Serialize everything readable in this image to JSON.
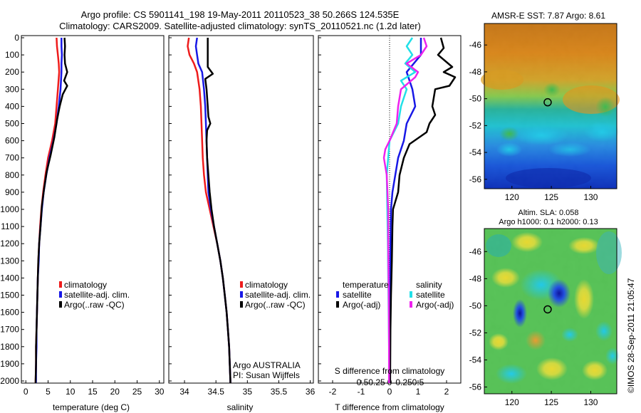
{
  "header": {
    "title_line1": "Argo profile: CS 5901141_198 19-May-2011 20110523_38 50.266S 124.535E",
    "title_line2": "Climatology: CARS2009. Satellite-adjusted climatology: synTS_20110521.nc (1.2d later)"
  },
  "colors": {
    "climatology": "#ee1c1c",
    "satellite": "#1818e6",
    "argo": "#000000",
    "s_satellite": "#22e0e8",
    "s_argo": "#ee22ee"
  },
  "chart_data": [
    {
      "id": "temperature",
      "type": "line",
      "xlabel": "temperature (deg C)",
      "xlim": [
        -1,
        31
      ],
      "xticks": [
        0,
        5,
        10,
        15,
        20,
        25,
        30
      ],
      "ylim": [
        2060,
        0
      ],
      "yticks": [
        0,
        100,
        200,
        300,
        400,
        500,
        600,
        700,
        800,
        900,
        1000,
        1100,
        1200,
        1300,
        1400,
        1500,
        1600,
        1700,
        1800,
        1900,
        2000
      ],
      "legend": [
        "climatology",
        "satellite-adj. clim.",
        "Argo(..raw -QC)"
      ],
      "series": [
        {
          "name": "climatology",
          "color_key": "climatology",
          "points": [
            [
              6.9,
              0
            ],
            [
              7.0,
              50
            ],
            [
              7.2,
              100
            ],
            [
              7.4,
              150
            ],
            [
              7.5,
              200
            ],
            [
              7.2,
              300
            ],
            [
              6.9,
              400
            ],
            [
              6.6,
              500
            ],
            [
              5.9,
              600
            ],
            [
              5.0,
              700
            ],
            [
              4.4,
              800
            ],
            [
              3.9,
              900
            ],
            [
              3.5,
              1000
            ],
            [
              3.2,
              1100
            ],
            [
              3.0,
              1200
            ],
            [
              2.8,
              1300
            ],
            [
              2.7,
              1400
            ],
            [
              2.6,
              1500
            ],
            [
              2.5,
              1600
            ],
            [
              2.4,
              1700
            ],
            [
              2.3,
              1800
            ],
            [
              2.3,
              1900
            ],
            [
              2.2,
              2000
            ],
            [
              2.2,
              2060
            ]
          ]
        },
        {
          "name": "satellite-adj. clim.",
          "color_key": "satellite",
          "points": [
            [
              8.0,
              0
            ],
            [
              8.0,
              50
            ],
            [
              8.1,
              100
            ],
            [
              8.0,
              150
            ],
            [
              8.0,
              200
            ],
            [
              7.8,
              300
            ],
            [
              7.4,
              400
            ],
            [
              6.9,
              500
            ],
            [
              6.2,
              600
            ],
            [
              5.3,
              700
            ],
            [
              4.6,
              800
            ],
            [
              4.0,
              900
            ],
            [
              3.6,
              1000
            ],
            [
              3.3,
              1100
            ],
            [
              3.0,
              1200
            ],
            [
              2.9,
              1300
            ],
            [
              2.7,
              1400
            ],
            [
              2.6,
              1500
            ],
            [
              2.5,
              1600
            ],
            [
              2.4,
              1700
            ],
            [
              2.4,
              1800
            ],
            [
              2.3,
              1900
            ],
            [
              2.3,
              2000
            ],
            [
              2.2,
              2060
            ]
          ]
        },
        {
          "name": "Argo(..raw -QC)",
          "color_key": "argo",
          "points": [
            [
              8.7,
              0
            ],
            [
              8.8,
              50
            ],
            [
              8.7,
              100
            ],
            [
              8.8,
              150
            ],
            [
              9.3,
              200
            ],
            [
              8.6,
              250
            ],
            [
              9.3,
              280
            ],
            [
              8.3,
              330
            ],
            [
              7.6,
              400
            ],
            [
              7.0,
              480
            ],
            [
              6.4,
              580
            ],
            [
              5.6,
              680
            ],
            [
              4.7,
              780
            ],
            [
              4.1,
              880
            ],
            [
              3.6,
              980
            ],
            [
              3.3,
              1100
            ],
            [
              3.0,
              1200
            ],
            [
              2.8,
              1300
            ],
            [
              2.7,
              1400
            ],
            [
              2.6,
              1500
            ],
            [
              2.5,
              1600
            ],
            [
              2.4,
              1700
            ],
            [
              2.3,
              1800
            ],
            [
              2.3,
              1900
            ],
            [
              2.2,
              2000
            ],
            [
              2.2,
              2050
            ]
          ]
        }
      ]
    },
    {
      "id": "salinity",
      "type": "line",
      "xlabel": "salinity",
      "xlim": [
        33.75,
        36.05
      ],
      "xticks": [
        34,
        34.5,
        35,
        35.5,
        36
      ],
      "ylim": [
        2060,
        0
      ],
      "legend": [
        "climatology",
        "satellite-adj. clim.",
        "Argo(..raw -QC)"
      ],
      "annotations": [
        "Argo AUSTRALIA",
        "PI: Susan Wijffels"
      ],
      "series": [
        {
          "name": "climatology",
          "color_key": "climatology",
          "points": [
            [
              34.07,
              0
            ],
            [
              34.05,
              50
            ],
            [
              34.08,
              100
            ],
            [
              34.15,
              150
            ],
            [
              34.2,
              200
            ],
            [
              34.24,
              300
            ],
            [
              34.26,
              400
            ],
            [
              34.27,
              500
            ],
            [
              34.28,
              600
            ],
            [
              34.29,
              700
            ],
            [
              34.31,
              800
            ],
            [
              34.34,
              900
            ],
            [
              34.4,
              1000
            ],
            [
              34.46,
              1100
            ],
            [
              34.52,
              1200
            ],
            [
              34.57,
              1300
            ],
            [
              34.61,
              1400
            ],
            [
              34.64,
              1500
            ],
            [
              34.67,
              1600
            ],
            [
              34.69,
              1700
            ],
            [
              34.71,
              1800
            ],
            [
              34.72,
              1900
            ],
            [
              34.73,
              2000
            ],
            [
              34.73,
              2060
            ]
          ]
        },
        {
          "name": "satellite-adj. clim.",
          "color_key": "satellite",
          "points": [
            [
              34.2,
              0
            ],
            [
              34.18,
              50
            ],
            [
              34.2,
              100
            ],
            [
              34.22,
              150
            ],
            [
              34.28,
              200
            ],
            [
              34.31,
              300
            ],
            [
              34.33,
              400
            ],
            [
              34.34,
              500
            ],
            [
              34.35,
              600
            ],
            [
              34.36,
              700
            ],
            [
              34.37,
              800
            ],
            [
              34.38,
              900
            ],
            [
              34.42,
              1000
            ],
            [
              34.47,
              1100
            ],
            [
              34.52,
              1200
            ],
            [
              34.57,
              1300
            ],
            [
              34.61,
              1400
            ],
            [
              34.64,
              1500
            ],
            [
              34.67,
              1600
            ],
            [
              34.69,
              1700
            ],
            [
              34.71,
              1800
            ],
            [
              34.72,
              1900
            ],
            [
              34.73,
              2000
            ],
            [
              34.73,
              2060
            ]
          ]
        },
        {
          "name": "Argo(..raw -QC)",
          "color_key": "argo",
          "points": [
            [
              34.37,
              0
            ],
            [
              34.37,
              100
            ],
            [
              34.37,
              170
            ],
            [
              34.45,
              210
            ],
            [
              34.33,
              240
            ],
            [
              34.35,
              300
            ],
            [
              34.37,
              400
            ],
            [
              34.38,
              460
            ],
            [
              34.41,
              500
            ],
            [
              34.36,
              540
            ],
            [
              34.35,
              600
            ],
            [
              34.36,
              700
            ],
            [
              34.38,
              800
            ],
            [
              34.4,
              900
            ],
            [
              34.43,
              1000
            ],
            [
              34.47,
              1100
            ],
            [
              34.52,
              1200
            ],
            [
              34.57,
              1300
            ],
            [
              34.61,
              1400
            ],
            [
              34.64,
              1500
            ],
            [
              34.67,
              1600
            ],
            [
              34.69,
              1700
            ],
            [
              34.71,
              1800
            ],
            [
              34.72,
              1900
            ],
            [
              34.73,
              2000
            ],
            [
              34.73,
              2050
            ]
          ]
        }
      ]
    },
    {
      "id": "difference",
      "type": "line",
      "xlabel": "T difference from climatology",
      "top_label": "S difference from climatology",
      "xlim": [
        -2.5,
        2.5
      ],
      "xticks_T": [
        -2,
        -1,
        0,
        1,
        2
      ],
      "xticks_S": [
        "-0.5",
        "-0.25",
        "0",
        "0.25",
        "0.5"
      ],
      "xticks_S_pos": [
        -1,
        -0.5,
        0,
        0.5,
        1
      ],
      "ylim": [
        2060,
        0
      ],
      "legend": {
        "temperature_header": "temperature",
        "salinity_header": "salinity",
        "temperature": [
          "satellite",
          "Argo(-adj)"
        ],
        "salinity": [
          "satellite",
          "Argo(-adj)"
        ]
      },
      "series": [
        {
          "name": "T satellite",
          "color_key": "satellite",
          "points": [
            [
              1.1,
              0
            ],
            [
              1.1,
              100
            ],
            [
              0.6,
              200
            ],
            [
              0.8,
              300
            ],
            [
              0.9,
              400
            ],
            [
              0.6,
              500
            ],
            [
              0.5,
              600
            ],
            [
              0.3,
              700
            ],
            [
              0.2,
              800
            ],
            [
              0.1,
              900
            ],
            [
              0.05,
              1000
            ],
            [
              0.03,
              1200
            ],
            [
              0.02,
              1500
            ],
            [
              0.01,
              2000
            ],
            [
              0.0,
              2060
            ]
          ]
        },
        {
          "name": "T Argo(-adj)",
          "color_key": "argo",
          "points": [
            [
              1.8,
              0
            ],
            [
              1.9,
              60
            ],
            [
              1.7,
              100
            ],
            [
              2.2,
              170
            ],
            [
              1.9,
              200
            ],
            [
              2.3,
              230
            ],
            [
              2.1,
              280
            ],
            [
              1.6,
              300
            ],
            [
              1.5,
              400
            ],
            [
              1.6,
              450
            ],
            [
              1.4,
              500
            ],
            [
              1.3,
              550
            ],
            [
              0.7,
              620
            ],
            [
              0.5,
              700
            ],
            [
              0.35,
              800
            ],
            [
              0.3,
              900
            ],
            [
              0.12,
              1000
            ],
            [
              0.1,
              1100
            ],
            [
              0.08,
              1300
            ],
            [
              0.05,
              1500
            ],
            [
              0.03,
              1700
            ],
            [
              0.02,
              2000
            ],
            [
              0.02,
              2050
            ]
          ]
        },
        {
          "name": "S satellite",
          "color_key": "s_satellite",
          "points": [
            [
              0.8,
              0
            ],
            [
              0.6,
              50
            ],
            [
              0.8,
              100
            ],
            [
              0.55,
              150
            ],
            [
              0.9,
              200
            ],
            [
              0.4,
              250
            ],
            [
              0.6,
              300
            ],
            [
              0.4,
              400
            ],
            [
              0.3,
              500
            ],
            [
              0.0,
              600
            ],
            [
              -0.05,
              700
            ],
            [
              -0.1,
              800
            ],
            [
              -0.08,
              1000
            ],
            [
              -0.06,
              1200
            ],
            [
              -0.04,
              1500
            ],
            [
              -0.02,
              1800
            ],
            [
              -0.02,
              2060
            ]
          ]
        },
        {
          "name": "S Argo(-adj)",
          "color_key": "s_argo",
          "points": [
            [
              1.2,
              0
            ],
            [
              1.3,
              50
            ],
            [
              1.1,
              100
            ],
            [
              0.6,
              150
            ],
            [
              1.0,
              200
            ],
            [
              0.9,
              230
            ],
            [
              0.4,
              300
            ],
            [
              0.3,
              400
            ],
            [
              0.25,
              500
            ],
            [
              0.0,
              600
            ],
            [
              -0.15,
              650
            ],
            [
              -0.2,
              700
            ],
            [
              -0.1,
              800
            ],
            [
              -0.05,
              1000
            ],
            [
              -0.05,
              1200
            ],
            [
              -0.03,
              1500
            ],
            [
              -0.02,
              1800
            ],
            [
              -0.02,
              2060
            ]
          ]
        }
      ]
    },
    {
      "id": "sst_map",
      "type": "heatmap",
      "title": "AMSR-E SST: 7.87 Argo: 8.61",
      "xticks": [
        120,
        125,
        130
      ],
      "yticks": [
        -46,
        -48,
        -50,
        -52,
        -54,
        -56
      ],
      "xlim": [
        116.5,
        133.3
      ],
      "ylim": [
        -56.7,
        -44.4
      ],
      "marker": {
        "lon": 124.535,
        "lat": -50.266
      }
    },
    {
      "id": "sla_map",
      "type": "heatmap",
      "title": "Altim. SLA: 0.058",
      "subtitle": "Argo h1000: 0.1 h2000: 0.13",
      "xticks": [
        120,
        125,
        130
      ],
      "yticks": [
        -46,
        -48,
        -50,
        -52,
        -54,
        -56
      ],
      "xlim": [
        116.5,
        133.3
      ],
      "ylim": [
        -56.5,
        -44.3
      ],
      "marker": {
        "lon": 124.535,
        "lat": -50.266
      }
    }
  ],
  "footer": {
    "stamp": "©IMOS 28-Sep-2011 21:05:47"
  }
}
